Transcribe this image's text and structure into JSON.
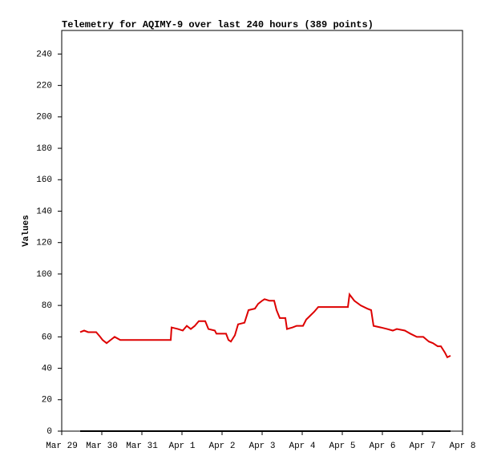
{
  "chart_data": {
    "type": "line",
    "title": "Telemetry for AQIMY-9 over last 240 hours (389 points)",
    "y_label": "Values",
    "xlim": [
      0,
      10
    ],
    "xticks": [
      {
        "value": 0,
        "label": "Mar 29"
      },
      {
        "value": 1,
        "label": "Mar 30"
      },
      {
        "value": 2,
        "label": "Mar 31"
      },
      {
        "value": 3,
        "label": "Apr 1"
      },
      {
        "value": 4,
        "label": "Apr 2"
      },
      {
        "value": 5,
        "label": "Apr 3"
      },
      {
        "value": 6,
        "label": "Apr 4"
      },
      {
        "value": 7,
        "label": "Apr 5"
      },
      {
        "value": 8,
        "label": "Apr 6"
      },
      {
        "value": 9,
        "label": "Apr 7"
      },
      {
        "value": 10,
        "label": "Apr 8"
      }
    ],
    "ylim": [
      0,
      255
    ],
    "yticks": [
      0,
      20,
      40,
      60,
      80,
      100,
      120,
      140,
      160,
      180,
      200,
      220,
      240
    ],
    "series": [
      {
        "color": "#000000",
        "x": [
          0.46,
          9.7
        ],
        "values": [
          0,
          0
        ]
      },
      {
        "color": "#dd0000",
        "x": [
          0.46,
          0.56,
          0.66,
          0.76,
          0.86,
          0.96,
          1.02,
          1.12,
          1.22,
          1.32,
          1.46,
          2.72,
          2.74,
          2.9,
          3.02,
          3.12,
          3.22,
          3.32,
          3.42,
          3.58,
          3.66,
          3.82,
          3.86,
          4.1,
          4.16,
          4.22,
          4.32,
          4.4,
          4.56,
          4.66,
          4.82,
          4.9,
          5.0,
          5.06,
          5.18,
          5.3,
          5.36,
          5.44,
          5.58,
          5.62,
          5.76,
          5.86,
          6.02,
          6.1,
          6.18,
          6.3,
          6.4,
          7.14,
          7.18,
          7.3,
          7.46,
          7.62,
          7.72,
          7.78,
          7.96,
          8.12,
          8.26,
          8.36,
          8.56,
          8.7,
          8.86,
          9.02,
          9.16,
          9.26,
          9.38,
          9.46,
          9.56,
          9.62,
          9.7
        ],
        "values": [
          63,
          64,
          63,
          63,
          63,
          60,
          58,
          56,
          58,
          60,
          58,
          58,
          66,
          65,
          64,
          67,
          65,
          67,
          70,
          70,
          65,
          64,
          62,
          62,
          58,
          57,
          61,
          68,
          69,
          77,
          78,
          81,
          83,
          84,
          83,
          83,
          77,
          72,
          72,
          65,
          66,
          67,
          67,
          71,
          73,
          76,
          79,
          79,
          87,
          83,
          80,
          78,
          77,
          67,
          66,
          65,
          64,
          65,
          64,
          62,
          60,
          60,
          57,
          56,
          54,
          54,
          50,
          47,
          48
        ]
      }
    ]
  }
}
